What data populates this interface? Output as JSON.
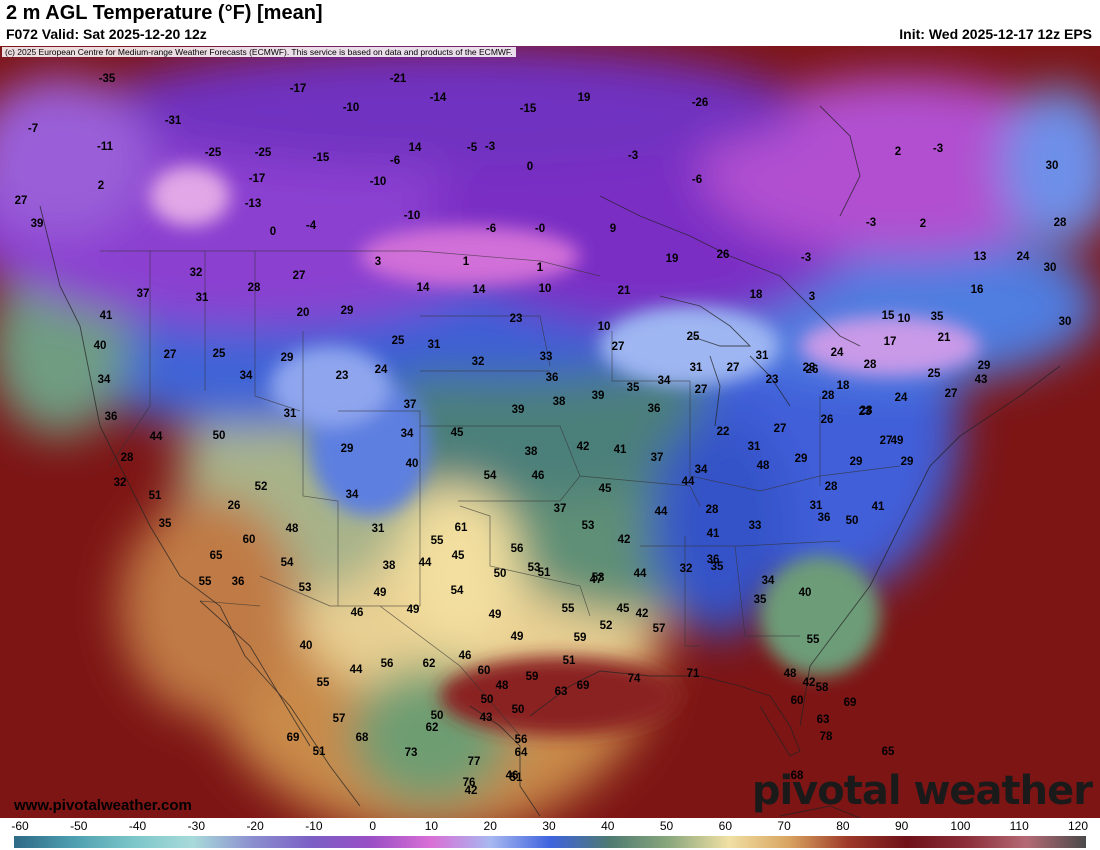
{
  "header": {
    "title": "2 m AGL Temperature (°F) [mean]",
    "valid": "F072 Valid: Sat 2025-12-20 12z",
    "init": "Init: Wed 2025-12-17 12z EPS"
  },
  "copyright": "(c) 2025 European Centre for Medium-range Weather Forecasts (ECMWF). This service is based on data and products of the ECMWF.",
  "website": "www.pivotalweather.com",
  "logo": "pivotal weather",
  "legend": {
    "ticks": [
      "-60",
      "-50",
      "-40",
      "-30",
      "-20",
      "-10",
      "0",
      "10",
      "20",
      "30",
      "40",
      "50",
      "60",
      "70",
      "80",
      "90",
      "100",
      "110",
      "120"
    ],
    "colors": [
      "#2f6a86",
      "#4d9fb0",
      "#7cc6c9",
      "#a8dada",
      "#8b8fcf",
      "#7b5fc5",
      "#9a4fc5",
      "#d96fd6",
      "#a7b8f0",
      "#3f63df",
      "#4e7a72",
      "#8aa87d",
      "#f0e0a4",
      "#d9a561",
      "#9e3a2a",
      "#6e1118",
      "#8c2f3a",
      "#b46a75",
      "#4a4a4a"
    ]
  },
  "map_values": [
    "-35",
    "-21",
    "-7",
    "-17",
    "-14",
    "19",
    "-10",
    "-26",
    "-31",
    "-15",
    "-11",
    "-25",
    "-25",
    "-15",
    "-6",
    "-5",
    "-3",
    "-3",
    "2",
    "-3",
    "2",
    "-17",
    "-10",
    "0",
    "14",
    "-6",
    "27",
    "-13",
    "-10",
    "30",
    "0",
    "-4",
    "-6",
    "-0",
    "9",
    "28",
    "30",
    "1",
    "3",
    "-3",
    "2",
    "1",
    "13",
    "24",
    "35",
    "-3",
    "10",
    "19",
    "26",
    "39",
    "32",
    "27",
    "14",
    "14",
    "10",
    "21",
    "18",
    "3",
    "16",
    "37",
    "31",
    "28",
    "29",
    "23",
    "20",
    "10",
    "15",
    "41",
    "25",
    "30",
    "25",
    "31",
    "25",
    "31",
    "21",
    "40",
    "27",
    "29",
    "23",
    "24",
    "32",
    "33",
    "27",
    "31",
    "27",
    "26",
    "24",
    "17",
    "23",
    "34",
    "34",
    "36",
    "35",
    "34",
    "27",
    "23",
    "18",
    "28",
    "25",
    "29",
    "37",
    "39",
    "38",
    "39",
    "36",
    "28",
    "28",
    "24",
    "27",
    "43",
    "36",
    "50",
    "34",
    "29",
    "31",
    "22",
    "23",
    "26",
    "27",
    "29",
    "28",
    "44",
    "38",
    "45",
    "40",
    "42",
    "41",
    "37",
    "34",
    "31",
    "29",
    "27",
    "29",
    "28",
    "32",
    "52",
    "54",
    "46",
    "45",
    "49",
    "41",
    "44",
    "28",
    "26",
    "37",
    "34",
    "51",
    "48",
    "32",
    "48",
    "36",
    "35",
    "31",
    "53",
    "42",
    "44",
    "41",
    "33",
    "31",
    "44",
    "54",
    "61",
    "55",
    "60",
    "45",
    "38",
    "46",
    "56",
    "50",
    "36",
    "53",
    "65",
    "54",
    "53",
    "55",
    "44",
    "42",
    "51",
    "47",
    "35",
    "34",
    "55",
    "36",
    "35",
    "40",
    "55",
    "49",
    "50",
    "49",
    "53",
    "49",
    "45",
    "59",
    "40",
    "62",
    "44",
    "49",
    "52",
    "51",
    "55",
    "57",
    "42",
    "48",
    "69",
    "74",
    "71",
    "69",
    "56",
    "46",
    "48",
    "59",
    "57",
    "60",
    "50",
    "50",
    "63",
    "60",
    "50",
    "58",
    "69",
    "51",
    "68",
    "73",
    "56",
    "62",
    "43",
    "64",
    "51",
    "63",
    "65",
    "68",
    "76",
    "77",
    "78",
    "42",
    "46",
    "69",
    "42",
    "64"
  ],
  "colors": {
    "cold_violet": "#7a2fc4",
    "frigid_blue": "#3559e0",
    "mild_green": "#5f9a78",
    "warm_tan": "#ecd69a",
    "hot_red": "#7d1515"
  }
}
